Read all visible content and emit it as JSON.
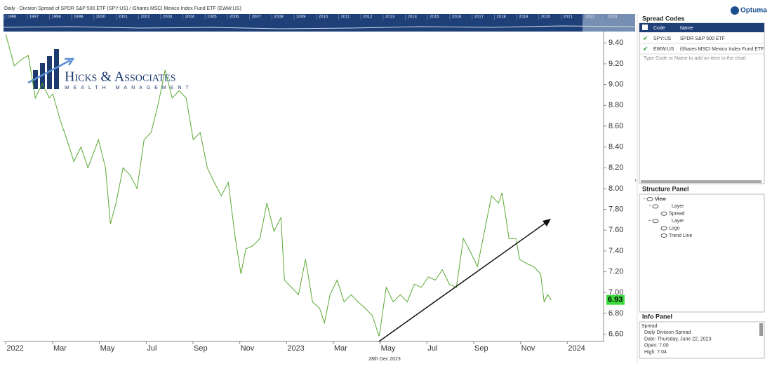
{
  "header": {
    "title": "Daily - Division Spread of SPDR S&P 500 ETF (SPY:US) / iShares MSCI Mexico Index Fund ETF (EWW:US)",
    "brand": "Optuma"
  },
  "navigator": {
    "years": [
      "1996",
      "1997",
      "1998",
      "1999",
      "2000",
      "2001",
      "2002",
      "2003",
      "2004",
      "2005",
      "2006",
      "2007",
      "2008",
      "2009",
      "2010",
      "2011",
      "2012",
      "2013",
      "2014",
      "2015",
      "2016",
      "2017",
      "2018",
      "2019",
      "2020",
      "2021",
      "2022",
      "2023"
    ]
  },
  "logo": {
    "name": "Hicks & Associates",
    "tagline": "WEALTH MANAGEMENT"
  },
  "crosshair": {
    "date": "28th Dec 2023"
  },
  "chart_data": {
    "type": "line",
    "x": [
      0,
      0.36,
      0.66,
      0.96,
      1.26,
      1.56,
      1.86,
      2.01,
      2.31,
      2.61,
      2.91,
      3.21,
      3.51,
      3.96,
      4.26,
      4.47,
      4.71,
      5.01,
      5.31,
      5.61,
      5.91,
      6.21,
      6.51,
      6.81,
      7.11,
      7.41,
      7.71,
      8.01,
      8.31,
      8.61,
      8.91,
      9.21,
      9.51,
      9.81,
      10.05,
      10.26,
      10.56,
      10.86,
      11.16,
      11.46,
      11.76,
      11.91,
      12.21,
      12.51,
      12.81,
      13.11,
      13.41,
      13.62,
      13.86,
      14.16,
      14.46,
      14.76,
      15.06,
      15.36,
      15.66,
      15.96,
      16.26,
      16.56,
      16.86,
      17.16,
      17.46,
      17.76,
      18.06,
      18.36,
      18.66,
      18.96,
      19.26,
      19.56,
      19.86,
      20.16,
      20.46,
      20.76,
      21.06,
      21.21,
      21.51,
      21.81,
      21.96,
      22.26,
      22.56,
      22.86,
      23.01,
      23.16,
      23.31
    ],
    "series": [
      {
        "name": "Spread",
        "color": "#5aa832",
        "values": [
          9.48,
          9.18,
          9.24,
          9.28,
          8.87,
          9.01,
          8.87,
          8.91,
          8.67,
          8.47,
          8.26,
          8.4,
          8.2,
          8.47,
          8.2,
          7.66,
          7.86,
          8.2,
          8.13,
          8.0,
          8.47,
          8.54,
          8.81,
          9.14,
          8.87,
          8.94,
          8.87,
          8.47,
          8.54,
          8.2,
          8.06,
          7.93,
          8.06,
          7.52,
          7.18,
          7.42,
          7.45,
          7.52,
          7.86,
          7.59,
          7.72,
          7.12,
          7.05,
          6.98,
          7.32,
          6.91,
          6.85,
          6.71,
          6.98,
          7.12,
          6.91,
          6.98,
          6.91,
          6.85,
          6.78,
          6.58,
          7.05,
          6.91,
          6.98,
          6.91,
          7.08,
          7.05,
          7.15,
          7.12,
          7.22,
          7.08,
          7.05,
          7.52,
          7.39,
          7.25,
          7.59,
          7.93,
          7.86,
          7.96,
          7.52,
          7.52,
          7.32,
          7.28,
          7.25,
          7.18,
          6.91,
          6.98,
          6.93
        ]
      }
    ],
    "xlim": [
      -0.1,
      25.55
    ],
    "xticks": [
      {
        "value": 0,
        "label": "2022"
      },
      {
        "value": 2,
        "label": "Mar"
      },
      {
        "value": 4,
        "label": "May"
      },
      {
        "value": 6,
        "label": "Jul"
      },
      {
        "value": 8,
        "label": "Sep"
      },
      {
        "value": 10,
        "label": "Nov"
      },
      {
        "value": 12,
        "label": "2023"
      },
      {
        "value": 14,
        "label": "Mar"
      },
      {
        "value": 16,
        "label": "May"
      },
      {
        "value": 18,
        "label": "Jul"
      },
      {
        "value": 20,
        "label": "Sep"
      },
      {
        "value": 22,
        "label": "Nov"
      },
      {
        "value": 24,
        "label": "2024"
      }
    ],
    "ylim": [
      6.53,
      9.51
    ],
    "yticks": [
      {
        "value": 6.6,
        "label": "6.60"
      },
      {
        "value": 6.8,
        "label": "6.80"
      },
      {
        "value": 7,
        "label": "7.00"
      },
      {
        "value": 7.2,
        "label": "7.20"
      },
      {
        "value": 7.4,
        "label": "7.40"
      },
      {
        "value": 7.6,
        "label": "7.60"
      },
      {
        "value": 7.8,
        "label": "7.80"
      },
      {
        "value": 8,
        "label": "8.00"
      },
      {
        "value": 8.2,
        "label": "8.20"
      },
      {
        "value": 8.4,
        "label": "8.40"
      },
      {
        "value": 8.6,
        "label": "8.60"
      },
      {
        "value": 8.8,
        "label": "8.80"
      },
      {
        "value": 9,
        "label": "9.00"
      },
      {
        "value": 9.2,
        "label": "9.20"
      },
      {
        "value": 9.4,
        "label": "9.40"
      }
    ],
    "grid": false
  },
  "spread_codes": {
    "title": "Spread Codes",
    "columns": [
      "Code",
      "Name"
    ],
    "rows": [
      [
        "SPY:US",
        "SPDR S&P 500 ETF"
      ],
      [
        "EWW:US",
        "iShares MSCI Mexico Index Fund ETF"
      ]
    ],
    "placeholder": "Type Code or Name to add an item to the chart"
  },
  "structure_panel": {
    "title": "Structure Panel",
    "items": [
      "View",
      "Layer",
      "Spread",
      "Layer",
      "Logo",
      "Trend Line"
    ]
  },
  "info_panel": {
    "title": "Info Panel",
    "lines": [
      "Spread",
      "Daily Division Spread",
      "Date: Thursday, June 22, 2023",
      "Open: 7.00",
      "High: 7.04"
    ]
  }
}
